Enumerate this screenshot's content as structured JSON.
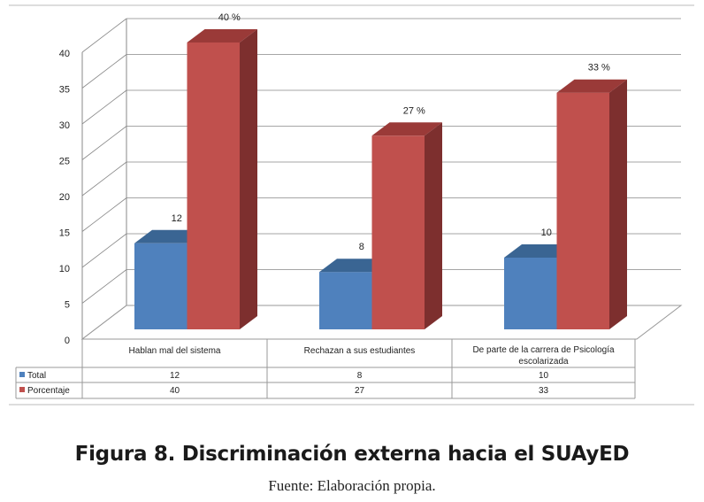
{
  "chart_data": {
    "type": "bar",
    "style": "3d-clustered-column",
    "categories": [
      "Hablan mal del sistema",
      "Rechazan a sus estudiantes",
      "De parte de la carrera de Psicología escolarizada"
    ],
    "series": [
      {
        "name": "Total",
        "values": [
          12,
          8,
          10
        ],
        "labels": [
          "12",
          "8",
          "10"
        ],
        "color": "#4f81bd",
        "top_color": "#3a6593",
        "side_color": "#2f5580"
      },
      {
        "name": "Porcentaje",
        "values": [
          40,
          27,
          33
        ],
        "labels": [
          "40 %",
          "27 %",
          "33 %"
        ],
        "color": "#c0504d",
        "top_color": "#9a3a38",
        "side_color": "#7d2f2e"
      }
    ],
    "yticks": [
      "0",
      "5",
      "10",
      "15",
      "20",
      "25",
      "30",
      "35",
      "40"
    ],
    "ylim": [
      0,
      40
    ],
    "grid": true,
    "legend": "data-table-below"
  },
  "caption": "Figura 8. Discriminación externa hacia el SUAyED",
  "source": "Fuente: Elaboración propia."
}
